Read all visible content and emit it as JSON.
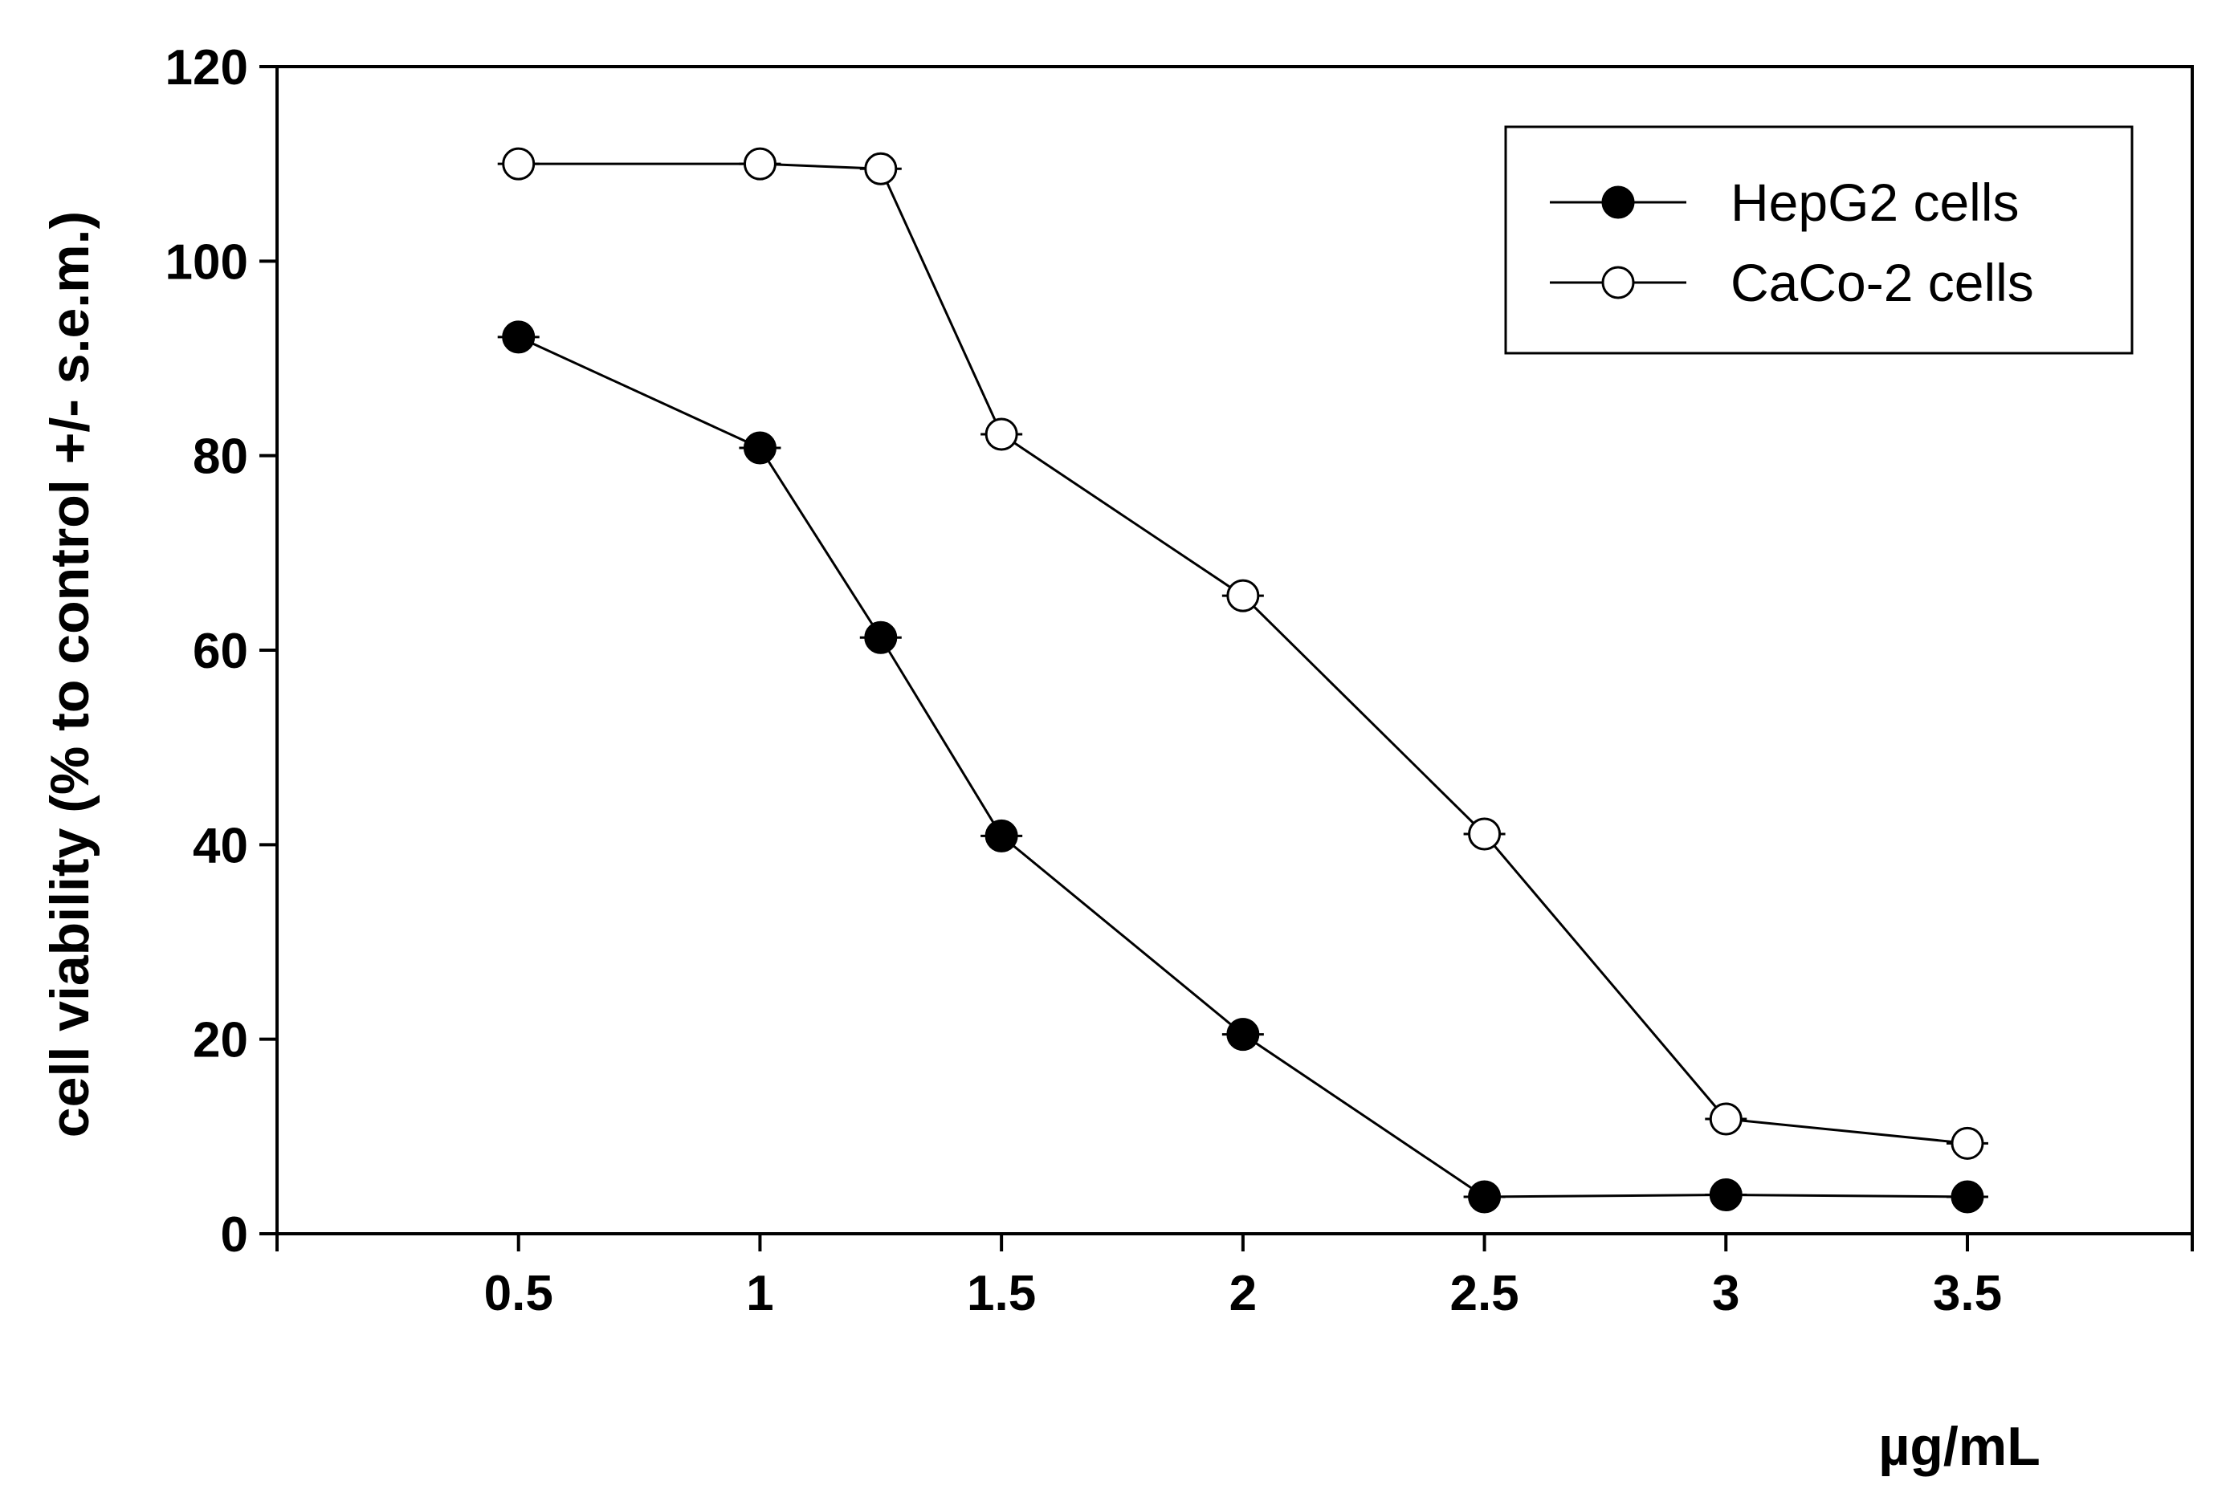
{
  "chart_data": {
    "type": "line",
    "title": "",
    "xlabel": "µg/mL",
    "ylabel": "cell viability (% to control +/- s.e.m.)",
    "xlim": [
      0,
      3.5
    ],
    "ylim": [
      0,
      120
    ],
    "x_ticks": [
      0.5,
      1,
      1.5,
      2,
      2.5,
      3,
      3.5
    ],
    "x_tick_labels": [
      "0.5",
      "1",
      "1.5",
      "2",
      "2.5",
      "3",
      "3.5"
    ],
    "y_ticks": [
      0,
      20,
      40,
      60,
      80,
      100,
      120
    ],
    "y_tick_labels": [
      "0",
      "20",
      "40",
      "60",
      "80",
      "100",
      "120"
    ],
    "grid": false,
    "legend_position": "top-right",
    "x": [
      0.5,
      1,
      1.25,
      1.5,
      2,
      2.5,
      3,
      3.5
    ],
    "series": [
      {
        "name": "HepG2 cells",
        "marker": "filled-circle",
        "color": "#000000",
        "values": [
          92.2,
          80.8,
          61.3,
          40.9,
          20.5,
          3.8,
          4.0,
          3.8
        ]
      },
      {
        "name": "CaCo-2 cells",
        "marker": "open-circle",
        "color": "#000000",
        "values": [
          110.0,
          110.0,
          109.5,
          82.2,
          65.6,
          41.1,
          11.8,
          9.3
        ]
      }
    ]
  }
}
